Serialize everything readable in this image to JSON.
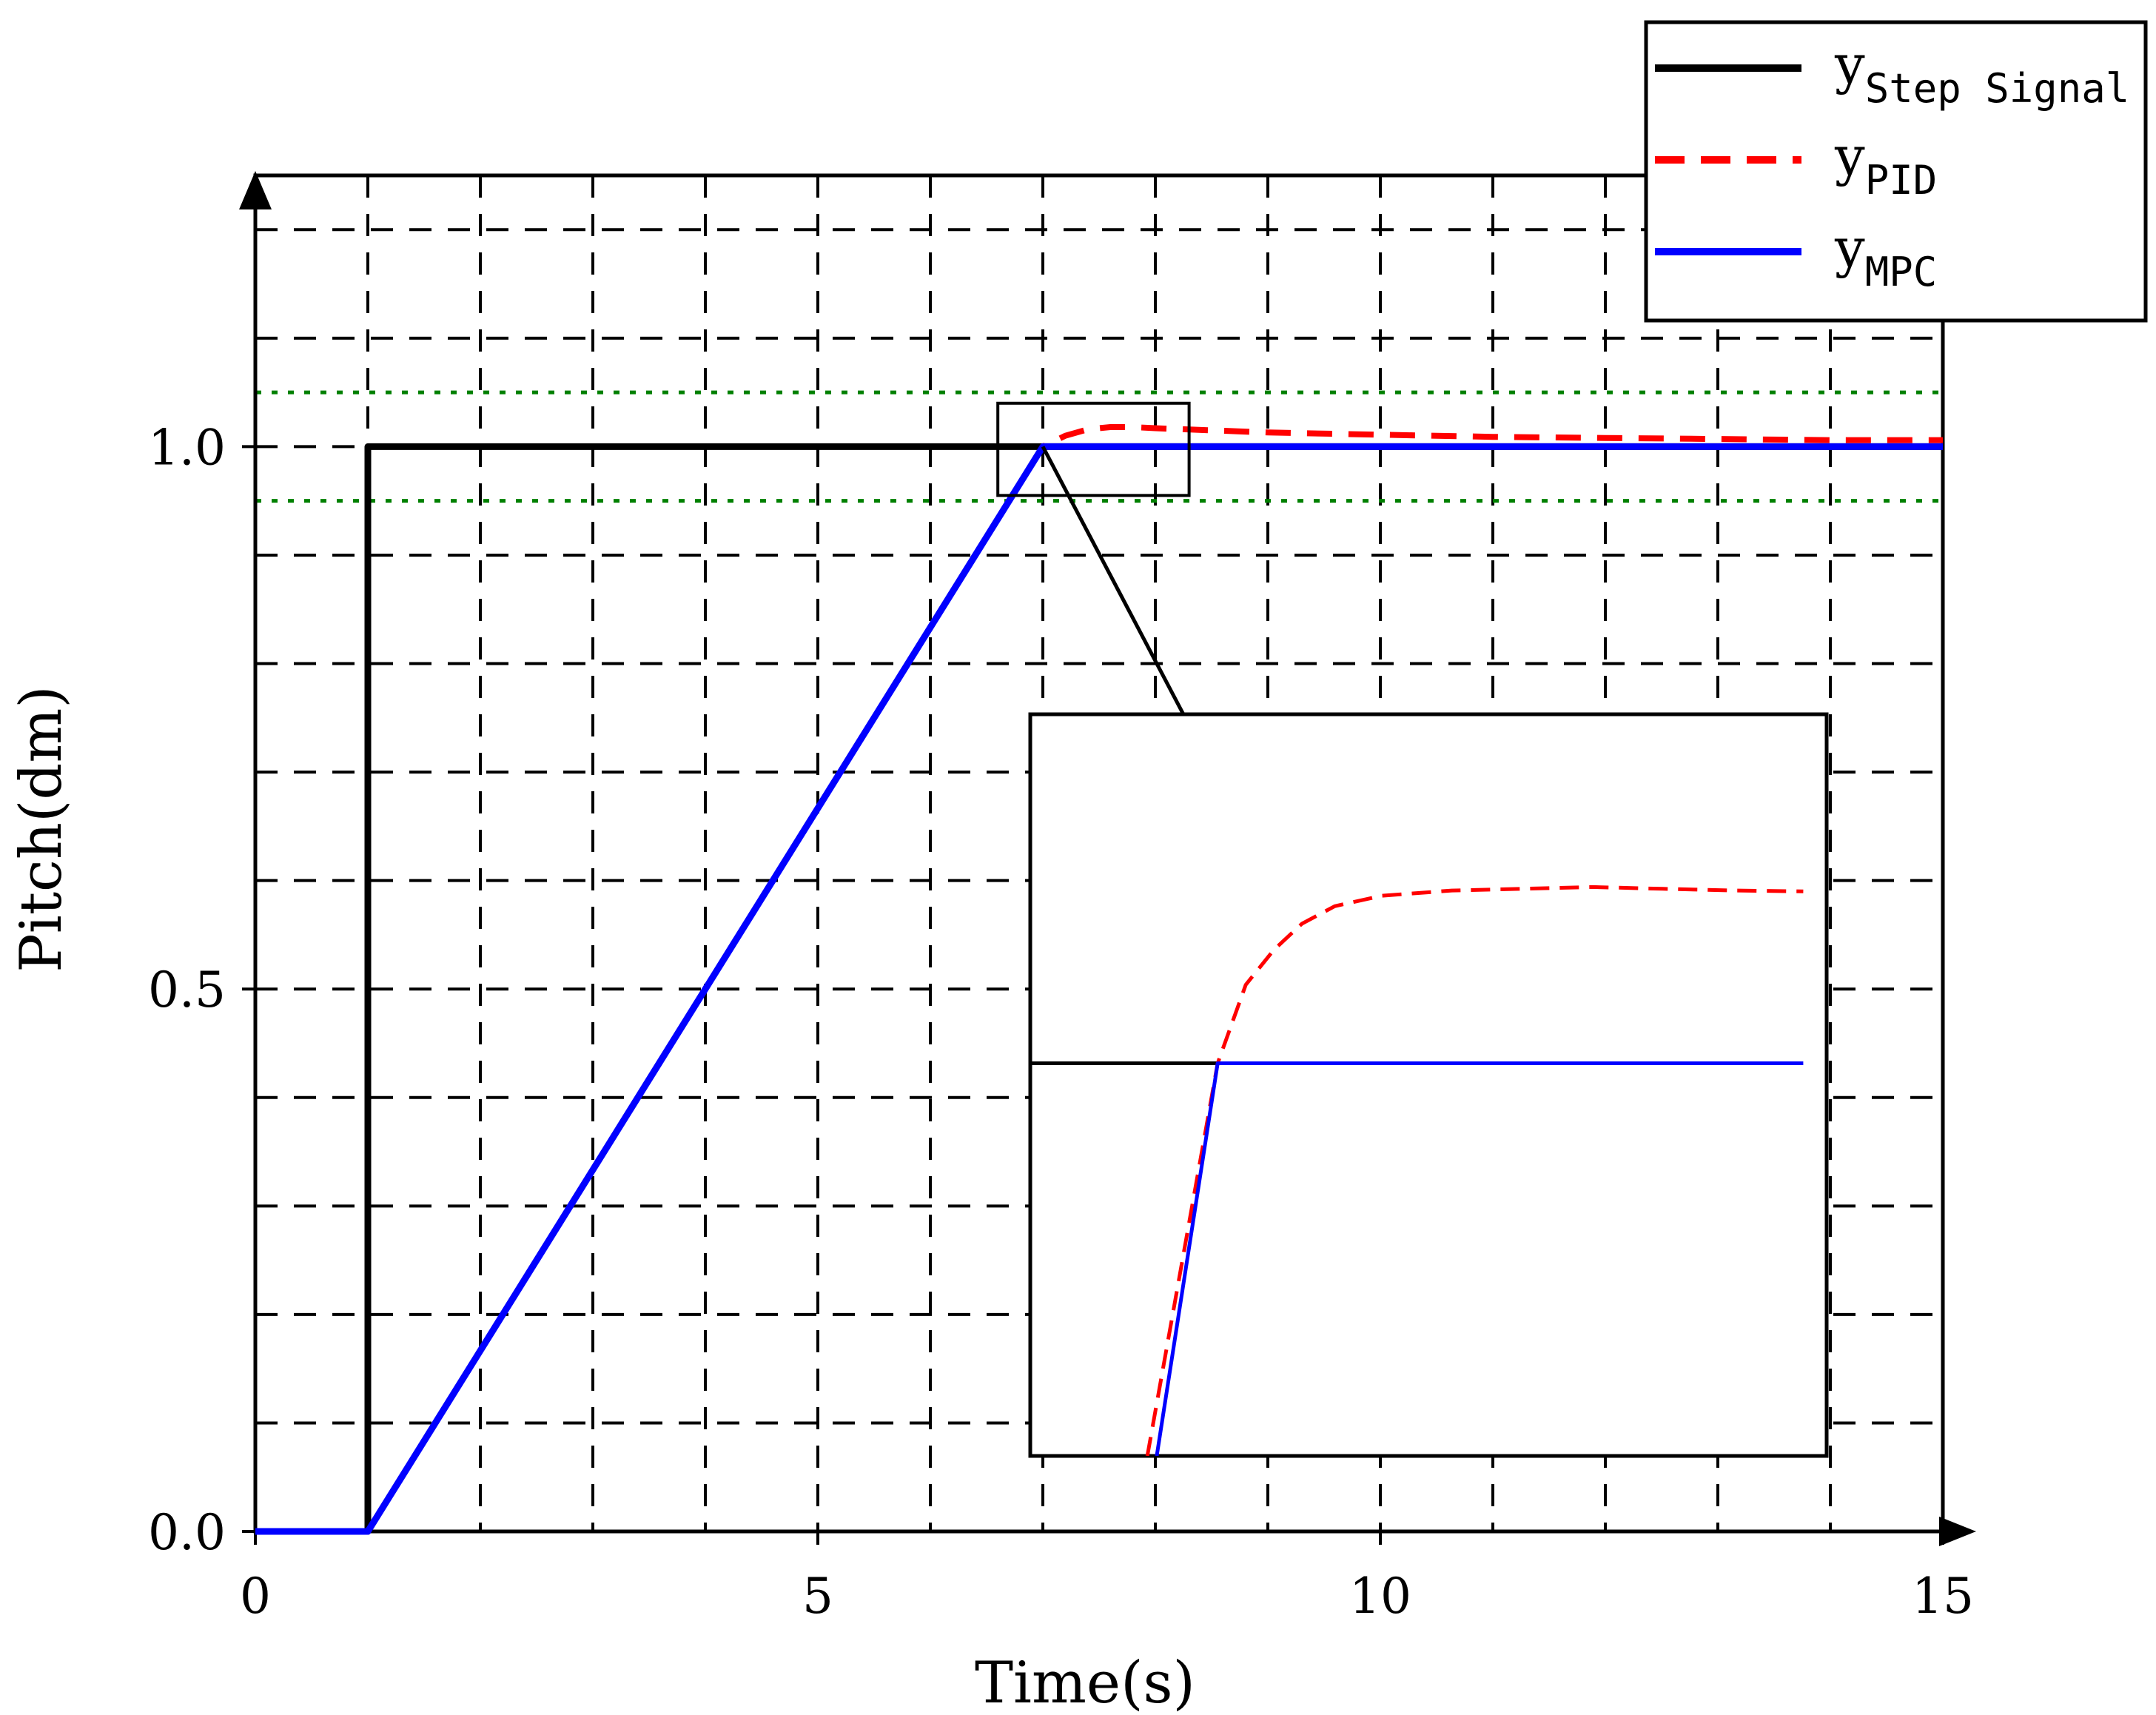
{
  "chart_data": {
    "type": "line",
    "title": "",
    "xlabel": "Time(s)",
    "ylabel": "Pitch(dm)",
    "xlim": [
      0,
      15
    ],
    "ylim": [
      0,
      1.25
    ],
    "x_ticks": [
      0,
      5,
      10,
      15
    ],
    "x_tick_labels": [
      "0",
      "5",
      "10",
      "15"
    ],
    "y_ticks": [
      0,
      0.5,
      1.0
    ],
    "y_tick_labels": [
      "0.0",
      "0.5",
      "1.0"
    ],
    "grid": true,
    "grid_style": "dashed",
    "x_grid": [
      1,
      2,
      3,
      4,
      5,
      6,
      7,
      8,
      9,
      10,
      11,
      12,
      13,
      14
    ],
    "y_grid": [
      0.1,
      0.2,
      0.3,
      0.4,
      0.5,
      0.6,
      0.7,
      0.8,
      0.9,
      1.0,
      1.1,
      1.2
    ],
    "tolerance_band": {
      "lower": 0.95,
      "upper": 1.05,
      "color": "#008000",
      "style": "dotted"
    },
    "legend_position": "top-right",
    "legend": [
      {
        "base": "y",
        "sub": "Step Signal",
        "color": "#000000",
        "style": "solid"
      },
      {
        "base": "y",
        "sub": "PID",
        "color": "#ff0000",
        "style": "dashed"
      },
      {
        "base": "y",
        "sub": "MPC",
        "color": "#0000ff",
        "style": "solid"
      }
    ],
    "series": [
      {
        "color": "#000000",
        "style": "solid",
        "x": [
          0,
          1,
          1,
          15
        ],
        "y": [
          0,
          0,
          1,
          1
        ]
      },
      {
        "color": "#ff0000",
        "style": "dashed",
        "x": [
          0,
          1,
          7,
          7.2,
          7.4,
          7.6,
          7.8,
          8.0,
          8.5,
          9,
          10,
          11,
          12,
          13,
          14,
          15
        ],
        "y": [
          0,
          0,
          1.0,
          1.01,
          1.016,
          1.018,
          1.018,
          1.017,
          1.015,
          1.013,
          1.011,
          1.009,
          1.008,
          1.007,
          1.006,
          1.006
        ]
      },
      {
        "color": "#0000ff",
        "style": "solid",
        "x": [
          0,
          1,
          7,
          15
        ],
        "y": [
          0,
          0,
          1,
          1
        ]
      }
    ],
    "zoom_region": {
      "x": [
        6.6,
        8.3
      ],
      "y": [
        0.955,
        1.04
      ]
    },
    "inset": {
      "xlim": [
        6.6,
        8.3
      ],
      "ylim": [
        0.955,
        1.04
      ],
      "series": [
        {
          "color": "#000000",
          "x": [
            6.6,
            7.0
          ],
          "y": [
            1.0,
            1.0
          ]
        },
        {
          "color": "#ff0000",
          "style": "dashed",
          "x": [
            6.85,
            7.0,
            7.06,
            7.12,
            7.18,
            7.25,
            7.35,
            7.5,
            7.65,
            7.8,
            7.95,
            8.1,
            8.25
          ],
          "y": [
            0.955,
            1.0,
            1.009,
            1.013,
            1.016,
            1.018,
            1.0192,
            1.0198,
            1.02,
            1.0202,
            1.02,
            1.0198,
            1.0197
          ]
        },
        {
          "color": "#0000ff",
          "x": [
            6.87,
            7.0,
            8.25
          ],
          "y": [
            0.955,
            1.0,
            1.0
          ]
        }
      ]
    }
  }
}
